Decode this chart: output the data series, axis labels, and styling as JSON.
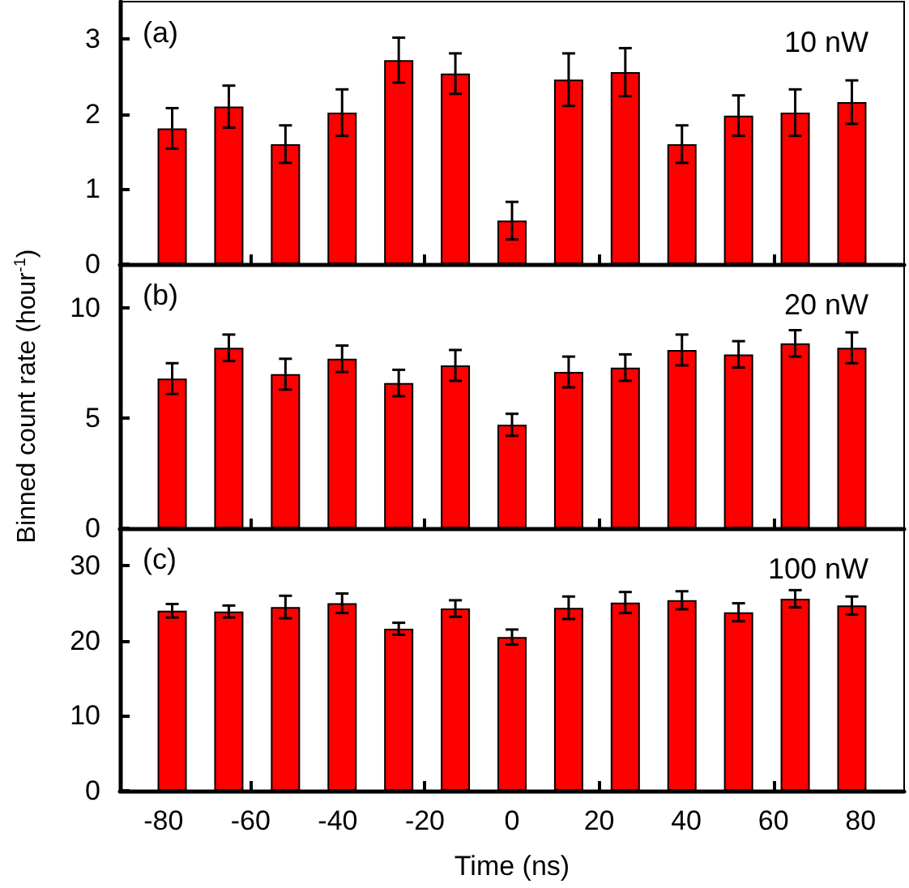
{
  "chart_data": [
    {
      "type": "bar",
      "annotations": [
        "(a)",
        "10 nW"
      ],
      "x": [
        -78,
        -65,
        -52,
        -39,
        -26,
        -13,
        0,
        13,
        26,
        39,
        52,
        65,
        78
      ],
      "color": "#ff0000",
      "values": [
        1.81,
        2.1,
        1.6,
        2.02,
        2.72,
        2.54,
        0.58,
        2.46,
        2.56,
        1.6,
        1.98,
        2.02,
        2.16
      ],
      "errors": [
        0.27,
        0.28,
        0.25,
        0.31,
        0.3,
        0.27,
        0.25,
        0.35,
        0.32,
        0.25,
        0.27,
        0.31,
        0.29
      ],
      "xlim": [
        -90,
        90
      ],
      "xticks": [
        -80,
        -60,
        -40,
        -20,
        0,
        20,
        40,
        60,
        80
      ],
      "ylim": [
        0,
        3.5
      ],
      "yticks": [
        0,
        1,
        2,
        3
      ],
      "tick_labels": "y"
    },
    {
      "type": "bar",
      "annotations": [
        "(b)",
        "20 nW"
      ],
      "ylabel": "Binned count rate (hour$^{-1}$)",
      "x": [
        -78,
        -65,
        -52,
        -39,
        -26,
        -13,
        0,
        13,
        26,
        39,
        52,
        65,
        78
      ],
      "color": "#ff0000",
      "values": [
        6.8,
        8.2,
        7.0,
        7.7,
        6.6,
        7.4,
        4.7,
        7.1,
        7.3,
        8.1,
        7.9,
        8.4,
        8.2
      ],
      "errors": [
        0.7,
        0.6,
        0.7,
        0.6,
        0.6,
        0.7,
        0.5,
        0.7,
        0.6,
        0.7,
        0.6,
        0.6,
        0.7
      ],
      "xlim": [
        -90,
        90
      ],
      "xticks": [
        -80,
        -60,
        -40,
        -20,
        0,
        20,
        40,
        60,
        80
      ],
      "ylim": [
        0,
        12
      ],
      "yticks": [
        0,
        5,
        10
      ],
      "tick_labels": "y"
    },
    {
      "type": "bar",
      "annotations": [
        "(c)",
        "100 nW"
      ],
      "xlabel": "Time (ns)",
      "x": [
        -78,
        -65,
        -52,
        -39,
        -26,
        -13,
        0,
        13,
        26,
        39,
        52,
        65,
        78
      ],
      "color": "#ff0000",
      "values": [
        24.0,
        23.9,
        24.5,
        25.0,
        21.6,
        24.3,
        20.5,
        24.4,
        25.1,
        25.4,
        23.8,
        25.6,
        24.7
      ],
      "errors": [
        0.9,
        0.8,
        1.5,
        1.3,
        0.8,
        1.1,
        1.0,
        1.5,
        1.4,
        1.2,
        1.2,
        1.15,
        1.2
      ],
      "xlim": [
        -90,
        90
      ],
      "xticks": [
        -80,
        -60,
        -40,
        -20,
        0,
        20,
        40,
        60,
        80
      ],
      "ylim": [
        0,
        35
      ],
      "yticks": [
        0,
        10,
        20,
        30
      ]
    }
  ]
}
